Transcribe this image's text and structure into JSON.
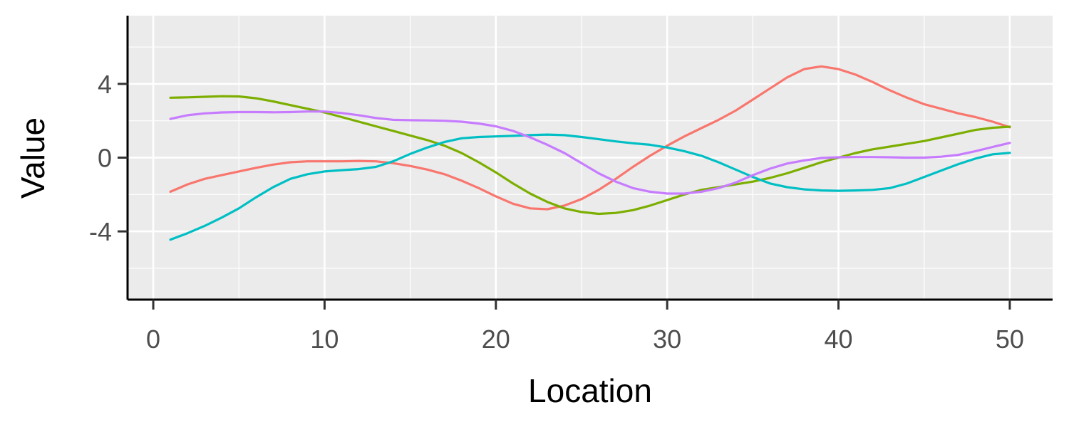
{
  "chart_data": {
    "type": "line",
    "title": "",
    "xlabel": "Location",
    "ylabel": "Value",
    "xlim": [
      -1.5,
      52.5
    ],
    "ylim": [
      -7.7,
      7.7
    ],
    "xticks": [
      0,
      10,
      20,
      30,
      40,
      50
    ],
    "yticks": [
      -4,
      0,
      4
    ],
    "grid": true,
    "legend": "none",
    "x": [
      1,
      2,
      3,
      4,
      5,
      6,
      7,
      8,
      9,
      10,
      11,
      12,
      13,
      14,
      15,
      16,
      17,
      18,
      19,
      20,
      21,
      22,
      23,
      24,
      25,
      26,
      27,
      28,
      29,
      30,
      31,
      32,
      33,
      34,
      35,
      36,
      37,
      38,
      39,
      40,
      41,
      42,
      43,
      44,
      45,
      46,
      47,
      48,
      49,
      50
    ],
    "series": [
      {
        "color": "#F8766D",
        "values": [
          -1.85,
          -1.45,
          -1.15,
          -0.95,
          -0.75,
          -0.55,
          -0.38,
          -0.25,
          -0.2,
          -0.2,
          -0.2,
          -0.18,
          -0.2,
          -0.3,
          -0.45,
          -0.65,
          -0.9,
          -1.25,
          -1.65,
          -2.1,
          -2.5,
          -2.75,
          -2.8,
          -2.6,
          -2.25,
          -1.75,
          -1.15,
          -0.5,
          0.1,
          0.65,
          1.15,
          1.6,
          2.05,
          2.55,
          3.15,
          3.75,
          4.35,
          4.8,
          4.95,
          4.8,
          4.5,
          4.1,
          3.65,
          3.25,
          2.9,
          2.65,
          2.4,
          2.2,
          1.95,
          1.65
        ]
      },
      {
        "color": "#7CAE00",
        "values": [
          3.25,
          3.27,
          3.3,
          3.33,
          3.32,
          3.22,
          3.05,
          2.85,
          2.65,
          2.45,
          2.2,
          1.95,
          1.7,
          1.45,
          1.2,
          0.95,
          0.65,
          0.25,
          -0.25,
          -0.8,
          -1.4,
          -1.95,
          -2.4,
          -2.75,
          -2.95,
          -3.05,
          -3.0,
          -2.85,
          -2.6,
          -2.3,
          -2.0,
          -1.75,
          -1.6,
          -1.45,
          -1.3,
          -1.1,
          -0.85,
          -0.55,
          -0.25,
          0.0,
          0.25,
          0.45,
          0.6,
          0.75,
          0.9,
          1.1,
          1.3,
          1.5,
          1.62,
          1.68
        ]
      },
      {
        "color": "#00BFC4",
        "values": [
          -4.45,
          -4.1,
          -3.7,
          -3.25,
          -2.75,
          -2.15,
          -1.6,
          -1.15,
          -0.9,
          -0.75,
          -0.68,
          -0.62,
          -0.5,
          -0.2,
          0.2,
          0.55,
          0.85,
          1.05,
          1.12,
          1.15,
          1.18,
          1.22,
          1.25,
          1.22,
          1.12,
          1.0,
          0.88,
          0.78,
          0.7,
          0.55,
          0.35,
          0.1,
          -0.25,
          -0.65,
          -1.05,
          -1.4,
          -1.6,
          -1.72,
          -1.78,
          -1.8,
          -1.78,
          -1.75,
          -1.65,
          -1.4,
          -1.05,
          -0.7,
          -0.35,
          -0.05,
          0.18,
          0.26
        ]
      },
      {
        "color": "#C77CFF",
        "values": [
          2.1,
          2.3,
          2.4,
          2.45,
          2.47,
          2.47,
          2.46,
          2.47,
          2.5,
          2.5,
          2.42,
          2.3,
          2.15,
          2.05,
          2.03,
          2.02,
          2.0,
          1.95,
          1.85,
          1.7,
          1.45,
          1.1,
          0.7,
          0.25,
          -0.3,
          -0.85,
          -1.3,
          -1.65,
          -1.85,
          -1.95,
          -1.95,
          -1.85,
          -1.65,
          -1.35,
          -0.95,
          -0.6,
          -0.32,
          -0.15,
          -0.02,
          0.02,
          0.03,
          0.03,
          0.02,
          0.0,
          0.0,
          0.05,
          0.15,
          0.35,
          0.58,
          0.8
        ]
      }
    ]
  }
}
